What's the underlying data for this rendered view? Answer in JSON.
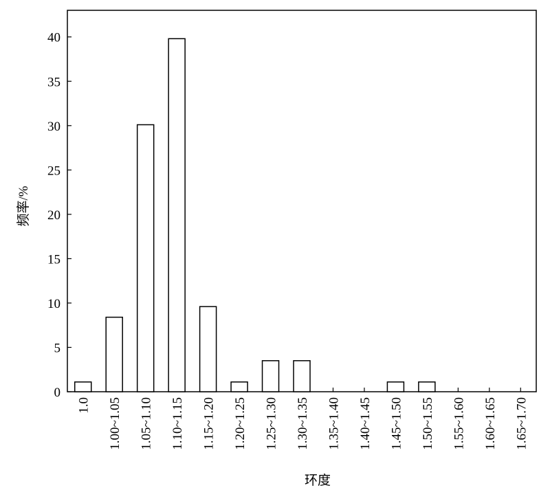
{
  "chart_data": {
    "type": "bar",
    "x_label": "环度",
    "y_label": "频率/%",
    "categories": [
      "1.0",
      "1.00~1.05",
      "1.05~1.10",
      "1.10~1.15",
      "1.15~1.20",
      "1.20~1.25",
      "1.25~1.30",
      "1.30~1.35",
      "1.35~1.40",
      "1.40~1.45",
      "1.45~1.50",
      "1.50~1.55",
      "1.55~1.60",
      "1.60~1.65",
      "1.65~1.70"
    ],
    "values": [
      1.1,
      8.4,
      30.1,
      39.8,
      9.6,
      1.1,
      3.5,
      3.5,
      0,
      0,
      1.1,
      1.1,
      0,
      0,
      0
    ],
    "color": "#ffffff",
    "edge_color": "#000000",
    "ylim": [
      0,
      43
    ],
    "yticks": [
      0,
      5,
      10,
      15,
      20,
      25,
      30,
      35,
      40
    ],
    "grid": false
  }
}
